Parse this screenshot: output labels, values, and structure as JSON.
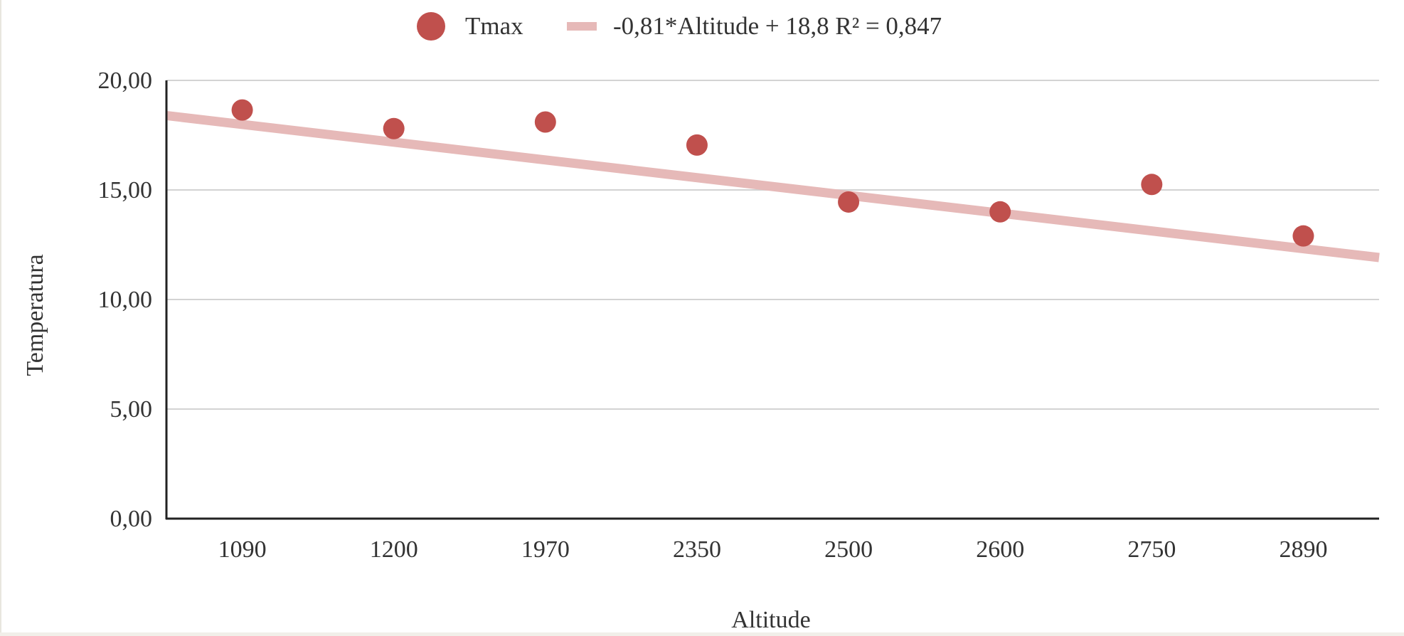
{
  "chart_data": {
    "type": "scatter",
    "categories": [
      "1090",
      "1200",
      "1970",
      "2350",
      "2500",
      "2600",
      "2750",
      "2890"
    ],
    "series": [
      {
        "name": "Tmax",
        "values": [
          18.65,
          17.8,
          18.1,
          17.05,
          14.45,
          14.0,
          15.25,
          12.9
        ]
      }
    ],
    "trendline": {
      "label": "-0,81*Altitude + 18,8 R² = 0,847",
      "slope": -0.81,
      "intercept": 18.8,
      "r_squared": 0.847
    },
    "xlabel": "Altitude",
    "ylabel": "Temperatura",
    "ylim": [
      0,
      20
    ],
    "yticks": [
      "0,00",
      "5,00",
      "10,00",
      "15,00",
      "20,00"
    ],
    "grid": true,
    "legend_position": "top-center",
    "colors": {
      "points": "#c0504d",
      "trendline": "#e6b9b8",
      "grid": "#d3d3d3",
      "axis": "#222222"
    }
  }
}
